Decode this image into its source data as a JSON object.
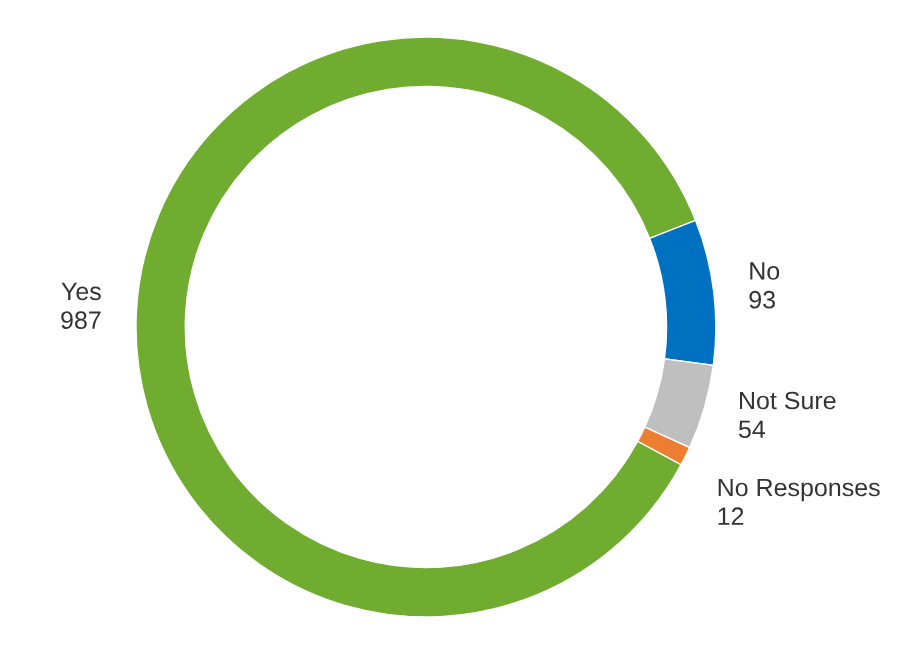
{
  "chart_data": {
    "type": "donut",
    "categories": [
      "Yes",
      "No",
      "Not Sure",
      "No Responses"
    ],
    "values": [
      987,
      93,
      54,
      12
    ],
    "colors": [
      "#6fac2f",
      "#0070c0",
      "#bfbfbf",
      "#ed7d31"
    ],
    "data_labels": true,
    "legend": false
  }
}
